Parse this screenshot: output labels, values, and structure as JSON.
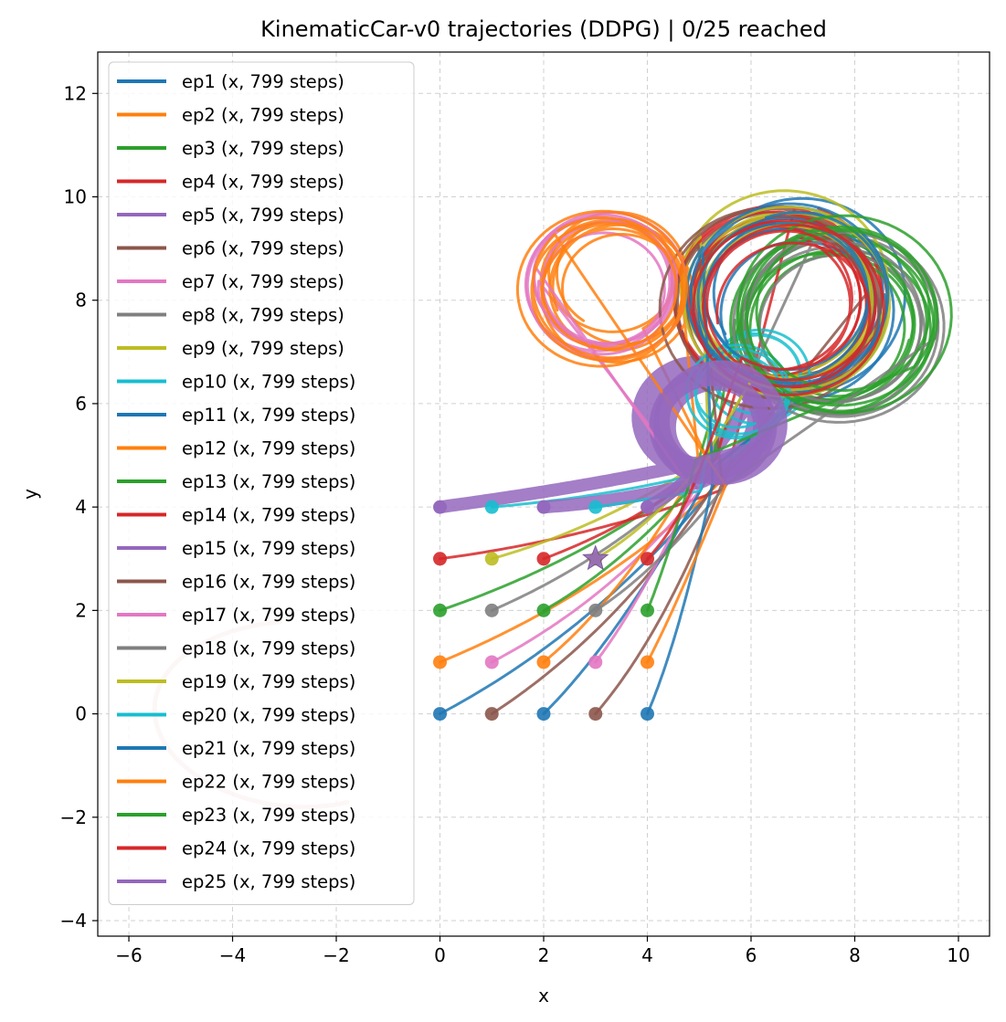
{
  "chart_data": {
    "type": "line",
    "title": "KinematicCar-v0 trajectories (DDPG) | 0/25 reached",
    "xlabel": "x",
    "ylabel": "y",
    "xlim": [
      -6.6,
      10.6
    ],
    "ylim": [
      -4.3,
      12.8
    ],
    "xticks": [
      -6,
      -4,
      -2,
      0,
      2,
      4,
      6,
      8,
      10
    ],
    "yticks": [
      -4,
      -2,
      0,
      2,
      4,
      6,
      8,
      10,
      12
    ],
    "grid": true,
    "legend_position": "upper-left",
    "goal": {
      "x": 3,
      "y": 3,
      "color": "#9467bd",
      "marker": "star"
    },
    "series": [
      {
        "name": "ep1 (x, 799 steps)",
        "color": "#1f77b4",
        "start": [
          0,
          0
        ]
      },
      {
        "name": "ep2 (x, 799 steps)",
        "color": "#ff7f0e",
        "start": [
          0,
          1
        ]
      },
      {
        "name": "ep3 (x, 799 steps)",
        "color": "#2ca02c",
        "start": [
          0,
          2
        ]
      },
      {
        "name": "ep4 (x, 799 steps)",
        "color": "#d62728",
        "start": [
          0,
          3
        ]
      },
      {
        "name": "ep5 (x, 799 steps)",
        "color": "#9467bd",
        "start": [
          0,
          4
        ]
      },
      {
        "name": "ep6 (x, 799 steps)",
        "color": "#8c564b",
        "start": [
          1,
          0
        ]
      },
      {
        "name": "ep7 (x, 799 steps)",
        "color": "#e377c2",
        "start": [
          1,
          1
        ]
      },
      {
        "name": "ep8 (x, 799 steps)",
        "color": "#7f7f7f",
        "start": [
          1,
          2
        ]
      },
      {
        "name": "ep9 (x, 799 steps)",
        "color": "#bcbd22",
        "start": [
          1,
          3
        ]
      },
      {
        "name": "ep10 (x, 799 steps)",
        "color": "#17becf",
        "start": [
          1,
          4
        ]
      },
      {
        "name": "ep11 (x, 799 steps)",
        "color": "#1f77b4",
        "start": [
          2,
          0
        ]
      },
      {
        "name": "ep12 (x, 799 steps)",
        "color": "#ff7f0e",
        "start": [
          2,
          1
        ]
      },
      {
        "name": "ep13 (x, 799 steps)",
        "color": "#2ca02c",
        "start": [
          2,
          2
        ]
      },
      {
        "name": "ep14 (x, 799 steps)",
        "color": "#d62728",
        "start": [
          2,
          3
        ]
      },
      {
        "name": "ep15 (x, 799 steps)",
        "color": "#9467bd",
        "start": [
          2,
          4
        ]
      },
      {
        "name": "ep16 (x, 799 steps)",
        "color": "#8c564b",
        "start": [
          3,
          0
        ]
      },
      {
        "name": "ep17 (x, 799 steps)",
        "color": "#e377c2",
        "start": [
          3,
          1
        ]
      },
      {
        "name": "ep18 (x, 799 steps)",
        "color": "#7f7f7f",
        "start": [
          3,
          2
        ]
      },
      {
        "name": "ep19 (x, 799 steps)",
        "color": "#bcbd22",
        "start": [
          3,
          3
        ]
      },
      {
        "name": "ep20 (x, 799 steps)",
        "color": "#17becf",
        "start": [
          3,
          4
        ]
      },
      {
        "name": "ep21 (x, 799 steps)",
        "color": "#1f77b4",
        "start": [
          4,
          0
        ]
      },
      {
        "name": "ep22 (x, 799 steps)",
        "color": "#ff7f0e",
        "start": [
          4,
          1
        ]
      },
      {
        "name": "ep23 (x, 799 steps)",
        "color": "#2ca02c",
        "start": [
          4,
          2
        ]
      },
      {
        "name": "ep24 (x, 799 steps)",
        "color": "#d62728",
        "start": [
          4,
          3
        ]
      },
      {
        "name": "ep25 (x, 799 steps)",
        "color": "#9467bd",
        "start": [
          4,
          4
        ]
      }
    ]
  }
}
